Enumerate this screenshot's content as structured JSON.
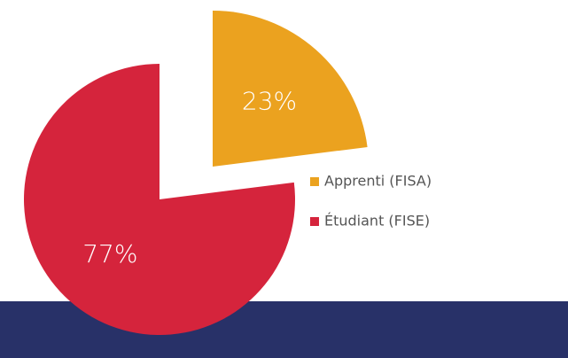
{
  "chart_data": {
    "type": "pie",
    "categories": [
      "Apprenti (FISA)",
      "Étudiant (FISE)"
    ],
    "values": [
      23,
      77
    ],
    "value_labels": [
      "23%",
      "77%"
    ],
    "colors": [
      "#eba21f",
      "#d5243c"
    ],
    "legend": "right"
  }
}
